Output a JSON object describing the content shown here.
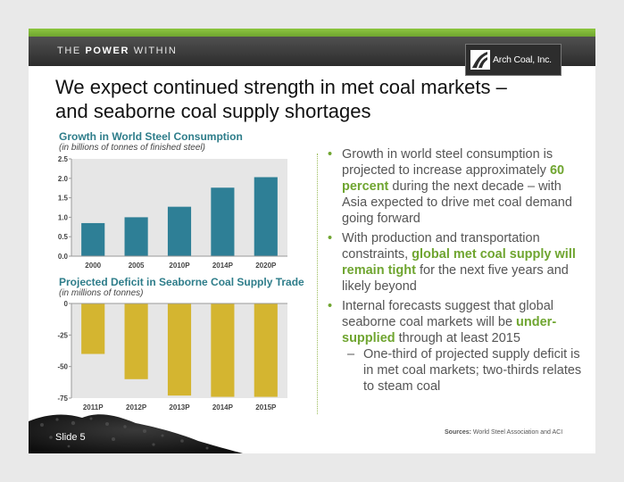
{
  "header": {
    "tagline_prefix": "THE",
    "tagline_bold": "POWER",
    "tagline_suffix": "WITHIN",
    "logo_text": "Arch Coal, Inc.",
    "logo_icon": "arch-logo-icon",
    "accent_green": "#8cc63f",
    "band_color": "#3a3a3a"
  },
  "slide": {
    "title_line1": "We expect continued strength in met coal markets –",
    "title_line2": "and seaborne coal supply shortages",
    "number": "Slide 5",
    "sources_label": "Sources:",
    "sources_text": "World Steel Association and ACI"
  },
  "charts": {
    "steel": {
      "title": "Growth in World Steel Consumption",
      "subtitle": "(in billions of tonnes of finished steel)"
    },
    "deficit": {
      "title": "Projected Deficit in Seaborne Coal Supply Trade",
      "subtitle": "(in millions of tonnes)"
    }
  },
  "chart_data": [
    {
      "type": "bar",
      "title": "Growth in World Steel Consumption",
      "subtitle": "(in billions of tonnes of finished steel)",
      "categories": [
        "2000",
        "2005",
        "2010P",
        "2014P",
        "2020P"
      ],
      "values": [
        0.85,
        1.0,
        1.27,
        1.76,
        2.03
      ],
      "ylim": [
        0,
        2.5
      ],
      "yticks": [
        "0.0",
        "0.5",
        "1.0",
        "1.5",
        "2.0",
        "2.5"
      ],
      "color": "#2e7f96",
      "grid": false,
      "legend": "none"
    },
    {
      "type": "bar",
      "title": "Projected Deficit in Seaborne Coal Supply Trade",
      "subtitle": "(in millions of tonnes)",
      "categories": [
        "2011P",
        "2012P",
        "2013P",
        "2014P",
        "2015P"
      ],
      "values": [
        -40,
        -60,
        -73,
        -74,
        -74
      ],
      "ylim": [
        -75,
        0
      ],
      "yticks": [
        "0",
        "-25",
        "-50",
        "-75"
      ],
      "color": "#d4b530",
      "grid": false,
      "legend": "none"
    }
  ],
  "bullets": {
    "b1_pre": "Growth in world steel consumption is projected to increase approximately ",
    "b1_hl": "60 percent",
    "b1_post": " during the next decade – with Asia expected to drive met coal demand going forward",
    "b2_pre": "With production and transportation constraints, ",
    "b2_hl": "global met coal supply will remain tight",
    "b2_post": " for the next five years and likely beyond",
    "b3_pre": "Internal forecasts suggest that global seaborne coal markets will be ",
    "b3_hl": "under-supplied",
    "b3_post": " through at least 2015",
    "sub1": "One-third of projected supply deficit is in met coal markets; two-thirds relates to steam coal",
    "bullet_char": "•",
    "dash_char": "–"
  }
}
